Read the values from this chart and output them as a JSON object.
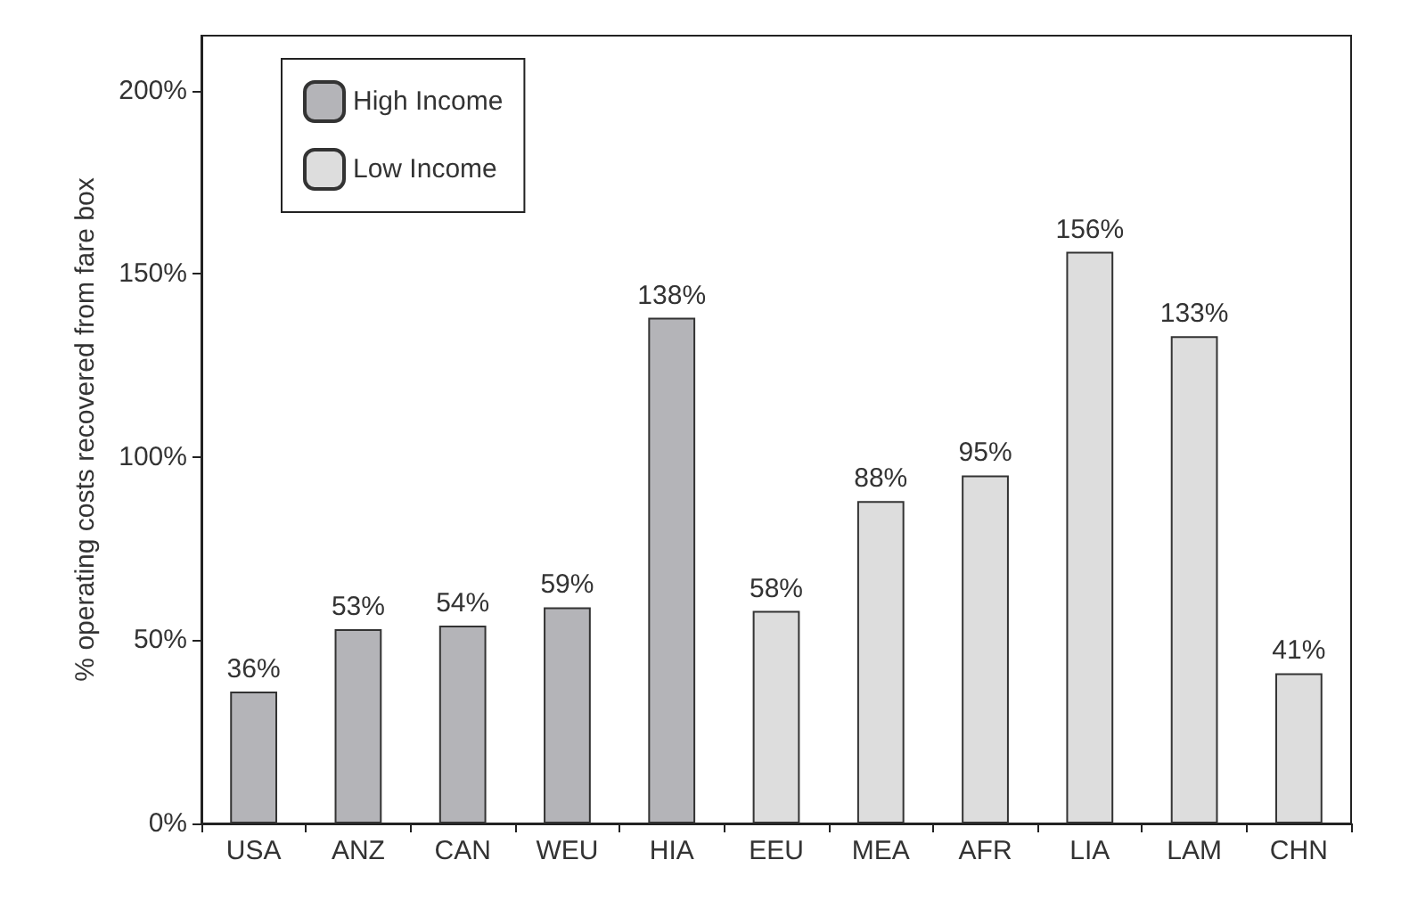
{
  "chart_data": {
    "type": "bar",
    "ylabel": "% operating costs recovered from fare box",
    "categories": [
      "USA",
      "ANZ",
      "CAN",
      "WEU",
      "HIA",
      "EEU",
      "MEA",
      "AFR",
      "LIA",
      "LAM",
      "CHN"
    ],
    "series": [
      {
        "name": "High Income",
        "color": "#b4b4b8",
        "values": [
          36,
          53,
          54,
          59,
          138,
          null,
          null,
          null,
          null,
          null,
          null
        ],
        "value_labels": [
          "36%",
          "53%",
          "54%",
          "59%",
          "138%",
          null,
          null,
          null,
          null,
          null,
          null
        ]
      },
      {
        "name": "Low Income",
        "color": "#dddddd",
        "values": [
          null,
          null,
          null,
          null,
          null,
          58,
          88,
          95,
          156,
          133,
          41
        ],
        "value_labels": [
          null,
          null,
          null,
          null,
          null,
          "58%",
          "88%",
          "95%",
          "156%",
          "133%",
          "41%"
        ]
      }
    ],
    "ylim": [
      0,
      215
    ],
    "yticks": [
      {
        "value": 0,
        "label": "0%"
      },
      {
        "value": 50,
        "label": "50%"
      },
      {
        "value": 100,
        "label": "100%"
      },
      {
        "value": 150,
        "label": "150%"
      },
      {
        "value": 200,
        "label": "200%"
      }
    ],
    "grid": false,
    "legend": "top left"
  }
}
